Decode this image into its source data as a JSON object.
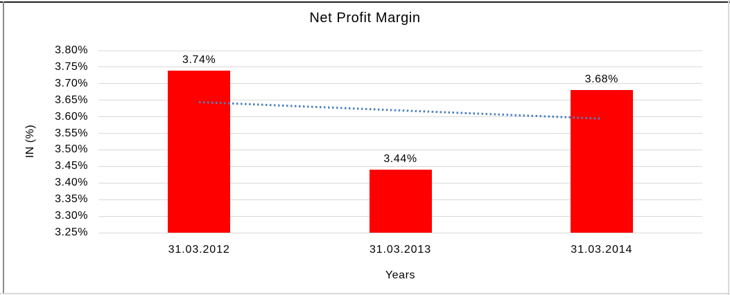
{
  "chart_data": {
    "type": "bar",
    "title": "Net Profit Margin",
    "xlabel": "Years",
    "ylabel": "IN (%)",
    "categories": [
      "31.03.2012",
      "31.03.2013",
      "31.03.2014"
    ],
    "values": [
      3.74,
      3.44,
      3.68
    ],
    "value_labels": [
      "3.74%",
      "3.44%",
      "3.68%"
    ],
    "ylim": [
      3.25,
      3.8
    ],
    "ytick_step": 0.05,
    "yticks": [
      {
        "value": 3.8,
        "label": "3.80%"
      },
      {
        "value": 3.75,
        "label": "3.75%"
      },
      {
        "value": 3.7,
        "label": "3.70%"
      },
      {
        "value": 3.65,
        "label": "3.65%"
      },
      {
        "value": 3.6,
        "label": "3.60%"
      },
      {
        "value": 3.55,
        "label": "3.55%"
      },
      {
        "value": 3.5,
        "label": "3.50%"
      },
      {
        "value": 3.45,
        "label": "3.45%"
      },
      {
        "value": 3.4,
        "label": "3.40%"
      },
      {
        "value": 3.35,
        "label": "3.35%"
      },
      {
        "value": 3.3,
        "label": "3.30%"
      },
      {
        "value": 3.25,
        "label": "3.25%"
      }
    ],
    "grid": true,
    "legend": "none",
    "colors": {
      "bar": "#ff0000",
      "gridline": "#d9d9d9",
      "trendline": "#4f81bd",
      "text": "#000000"
    },
    "trendline": {
      "style": "dotted",
      "color": "#4f81bd",
      "start_value": 3.645,
      "end_value": 3.595
    }
  }
}
